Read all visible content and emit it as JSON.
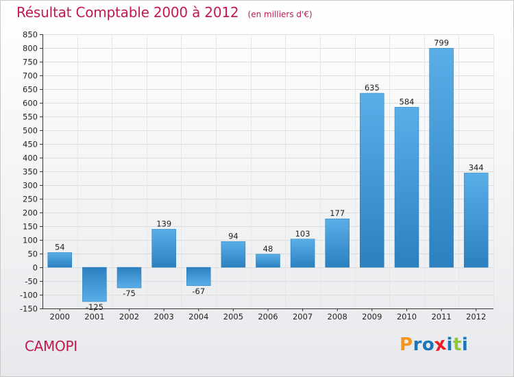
{
  "header": {
    "title": "Résultat Comptable 2000 à 2012",
    "subtitle": "(en milliers d'€)"
  },
  "footer": {
    "town": "CAMOPI",
    "logo_text": "Proxiti",
    "logo_letters": [
      {
        "char": "P",
        "color": "#f7941d"
      },
      {
        "char": "r",
        "color": "#1a75bb"
      },
      {
        "char": "o",
        "color": "#1a75bb"
      },
      {
        "char": "x",
        "color": "#ec1c24"
      },
      {
        "char": "i",
        "color": "#1a75bb"
      },
      {
        "char": "t",
        "color": "#8dc63f"
      },
      {
        "char": "i",
        "color": "#1a75bb"
      }
    ]
  },
  "colors": {
    "accent": "#c2184f",
    "bar_light": "#5aaee8",
    "bar_dark": "#2b80c0",
    "grid": "#dcdcdc",
    "axis": "#333333"
  },
  "chart_data": {
    "type": "bar",
    "categories": [
      "2000",
      "2001",
      "2002",
      "2003",
      "2004",
      "2005",
      "2006",
      "2007",
      "2008",
      "2009",
      "2010",
      "2011",
      "2012"
    ],
    "values": [
      54,
      -125,
      -75,
      139,
      -67,
      94,
      48,
      103,
      177,
      635,
      584,
      799,
      344
    ],
    "ylim": [
      -150,
      850
    ],
    "ytick_step": 50,
    "grid": true,
    "xlabel": "",
    "ylabel": ""
  }
}
